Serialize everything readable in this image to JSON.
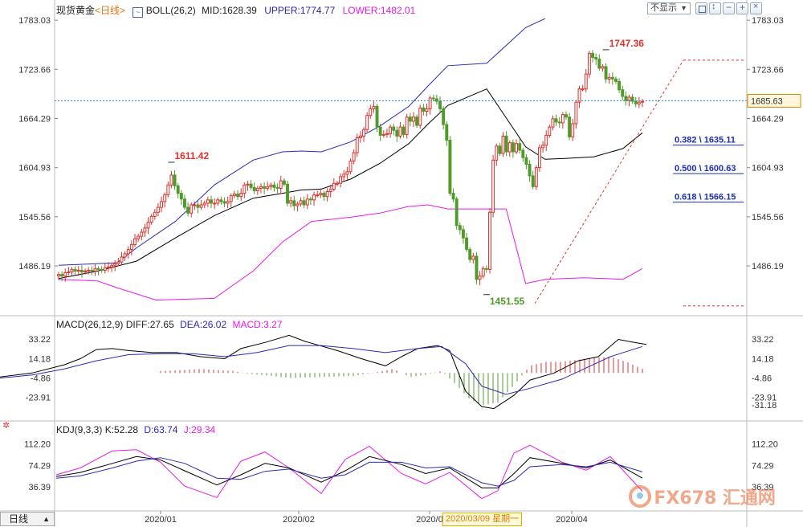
{
  "main_panel": {
    "symbol": "现货黄金",
    "period": "<日线>",
    "indicator": "BOLL(26,2)",
    "mid_label": "MID:1628.39",
    "upper_label": "UPPER:1774.77",
    "lower_label": "LOWER:1482.01",
    "display_select": "不显示",
    "toolbar_icons": [
      "grid-icon",
      "arrows-icon",
      "minus-icon",
      "plus-icon",
      "close-icon"
    ]
  },
  "macd_panel": {
    "title": "MACD(26,12,9)",
    "diff_label": "DIFF:27.65",
    "dea_label": "DEA:26.02",
    "macd_label": "MACD:3.27"
  },
  "kdj_panel": {
    "title": "KDJ(9,3,3)",
    "k_label": "K:52.28",
    "d_label": "D:63.74",
    "j_label": "J:29.34"
  },
  "footer": {
    "period_tab": "日线",
    "crosshair_date": "2020/03/09 星期一",
    "watermark": "FX678 汇通网"
  },
  "colors": {
    "up": "#e0312b",
    "down": "#4f9a2a",
    "mid": "#000000",
    "upper": "#2a2ab5",
    "lower": "#e81ae8",
    "dashed_price": "#2e9bd6",
    "fib": "#e0312b",
    "fib_text": "#1a2fb5"
  },
  "chart_data": [
    {
      "type": "candlestick",
      "x_ticks": [
        "2020/01",
        "2020/02",
        "2020/0",
        "2020/04"
      ],
      "y_ticks": [
        1783.03,
        1723.66,
        1664.29,
        1604.93,
        1545.56,
        1486.19
      ],
      "ylim": [
        1429,
        1788
      ],
      "current_price": "1685.63",
      "annotations": [
        {
          "text": "1611.42",
          "value": 1611.42,
          "candle": 34
        },
        {
          "text": "1747.36",
          "value": 1747.36,
          "candle": 165
        },
        {
          "text": "1451.55",
          "value": 1451.55,
          "candle": 129
        }
      ],
      "fib_levels": [
        {
          "label": "0.382 \\ 1635.11",
          "value": 1635.11
        },
        {
          "label": "0.500 \\ 1600.63",
          "value": 1600.63
        },
        {
          "label": "0.618 \\ 1566.15",
          "value": 1566.15
        }
      ],
      "fib_range": {
        "high": 1747.36,
        "low": 1451.55
      },
      "closes": [
        1476,
        1474,
        1478,
        1479,
        1482,
        1480,
        1481,
        1479,
        1480,
        1481,
        1480,
        1483,
        1482,
        1481,
        1484,
        1485,
        1487,
        1489,
        1491,
        1497,
        1501,
        1506,
        1512,
        1519,
        1522,
        1527,
        1532,
        1539,
        1546,
        1551,
        1557,
        1564,
        1572,
        1584,
        1596,
        1583,
        1574,
        1567,
        1557,
        1550,
        1560,
        1560,
        1557,
        1560,
        1562,
        1566,
        1562,
        1562,
        1566,
        1564,
        1562,
        1564,
        1571,
        1573,
        1570,
        1574,
        1584,
        1585,
        1581,
        1577,
        1580,
        1582,
        1580,
        1582,
        1584,
        1581,
        1580,
        1589,
        1585,
        1562,
        1565,
        1559,
        1561,
        1565,
        1560,
        1567,
        1566,
        1572,
        1572,
        1574,
        1570,
        1576,
        1579,
        1586,
        1586,
        1594,
        1597,
        1600,
        1613,
        1623,
        1641,
        1643,
        1651,
        1668,
        1676,
        1679,
        1654,
        1644,
        1645,
        1646,
        1654,
        1650,
        1643,
        1654,
        1645,
        1666,
        1661,
        1666,
        1656,
        1677,
        1673,
        1676,
        1689,
        1688,
        1685,
        1676,
        1657,
        1638,
        1574,
        1567,
        1535,
        1530,
        1520,
        1506,
        1494,
        1498,
        1470,
        1474,
        1483,
        1482,
        1551,
        1614,
        1631,
        1622,
        1643,
        1624,
        1635,
        1624,
        1634,
        1626,
        1617,
        1609,
        1595,
        1582,
        1605,
        1629,
        1632,
        1644,
        1654,
        1664,
        1660,
        1659,
        1669,
        1666,
        1642,
        1658,
        1684,
        1700,
        1700,
        1718,
        1743,
        1738,
        1736,
        1725,
        1727,
        1712,
        1714,
        1712,
        1709,
        1699,
        1691,
        1686,
        1690,
        1685,
        1682,
        1684,
        1685
      ],
      "boll": {
        "mid": [
          [
            0,
            1471
          ],
          [
            20,
            1480
          ],
          [
            40,
            1492
          ],
          [
            60,
            1520
          ],
          [
            80,
            1547
          ],
          [
            100,
            1568
          ],
          [
            115,
            1574
          ],
          [
            125,
            1578
          ],
          [
            135,
            1579
          ],
          [
            150,
            1591
          ],
          [
            165,
            1610
          ],
          [
            180,
            1634
          ],
          [
            190,
            1658
          ],
          [
            200,
            1680
          ],
          [
            220,
            1700
          ],
          [
            240,
            1630
          ],
          [
            250,
            1615
          ],
          [
            260,
            1616
          ],
          [
            275,
            1618
          ],
          [
            290,
            1628
          ],
          [
            300,
            1647
          ]
        ],
        "upper": [
          [
            0,
            1487
          ],
          [
            30,
            1490
          ],
          [
            40,
            1508
          ],
          [
            60,
            1540
          ],
          [
            80,
            1584
          ],
          [
            100,
            1614
          ],
          [
            115,
            1624
          ],
          [
            125,
            1625
          ],
          [
            135,
            1624
          ],
          [
            150,
            1636
          ],
          [
            165,
            1655
          ],
          [
            180,
            1679
          ],
          [
            190,
            1704
          ],
          [
            200,
            1728
          ],
          [
            220,
            1731
          ],
          [
            240,
            1774
          ],
          [
            250,
            1785
          ]
        ],
        "lower": [
          [
            0,
            1470
          ],
          [
            20,
            1468
          ],
          [
            30,
            1460
          ],
          [
            50,
            1445
          ],
          [
            80,
            1447
          ],
          [
            100,
            1480
          ],
          [
            115,
            1515
          ],
          [
            130,
            1540
          ],
          [
            150,
            1545
          ],
          [
            165,
            1550
          ],
          [
            180,
            1558
          ],
          [
            190,
            1560
          ],
          [
            200,
            1555
          ],
          [
            230,
            1555
          ],
          [
            240,
            1465
          ],
          [
            250,
            1470
          ],
          [
            270,
            1472
          ],
          [
            290,
            1470
          ],
          [
            300,
            1483
          ]
        ]
      }
    },
    {
      "type": "macd",
      "y_ticks": [
        33.22,
        14.18,
        -4.86,
        -23.91
      ],
      "ylim": [
        -44,
        46
      ],
      "current_value": "-31.18",
      "diff": [
        [
          0,
          -4
        ],
        [
          40,
          0
        ],
        [
          80,
          8
        ],
        [
          100,
          14
        ],
        [
          120,
          23
        ],
        [
          140,
          24
        ],
        [
          160,
          22
        ],
        [
          190,
          20
        ],
        [
          220,
          20
        ],
        [
          250,
          16
        ],
        [
          280,
          14
        ],
        [
          300,
          24
        ],
        [
          330,
          30
        ],
        [
          360,
          37
        ],
        [
          380,
          31
        ],
        [
          420,
          22
        ],
        [
          450,
          14
        ],
        [
          480,
          7
        ],
        [
          500,
          16
        ],
        [
          520,
          24
        ],
        [
          545,
          27
        ],
        [
          560,
          22
        ],
        [
          580,
          -18
        ],
        [
          600,
          -33
        ],
        [
          615,
          -35
        ],
        [
          640,
          -22
        ],
        [
          660,
          -7
        ],
        [
          690,
          0
        ],
        [
          720,
          12
        ],
        [
          745,
          16
        ],
        [
          770,
          33
        ],
        [
          790,
          30
        ],
        [
          805,
          28
        ]
      ],
      "dea": [
        [
          0,
          -5
        ],
        [
          40,
          -2
        ],
        [
          80,
          4
        ],
        [
          120,
          12
        ],
        [
          160,
          18
        ],
        [
          200,
          19
        ],
        [
          240,
          19
        ],
        [
          280,
          16
        ],
        [
          320,
          20
        ],
        [
          360,
          27
        ],
        [
          400,
          27
        ],
        [
          440,
          24
        ],
        [
          480,
          20
        ],
        [
          520,
          24
        ],
        [
          550,
          26
        ],
        [
          580,
          9
        ],
        [
          600,
          -13
        ],
        [
          630,
          -21
        ],
        [
          660,
          -15
        ],
        [
          700,
          -6
        ],
        [
          730,
          5
        ],
        [
          760,
          16
        ],
        [
          800,
          26
        ]
      ],
      "hist": [
        [
          200,
          2
        ],
        [
          230,
          3
        ],
        [
          250,
          4
        ],
        [
          290,
          2
        ],
        [
          310,
          -1
        ],
        [
          340,
          -3
        ],
        [
          360,
          -5
        ],
        [
          400,
          -4
        ],
        [
          440,
          -3
        ],
        [
          470,
          1
        ],
        [
          490,
          4
        ],
        [
          510,
          -4
        ],
        [
          530,
          -2
        ],
        [
          550,
          2
        ],
        [
          570,
          -13
        ],
        [
          585,
          -26
        ],
        [
          600,
          -32
        ],
        [
          620,
          -29
        ],
        [
          640,
          -12
        ],
        [
          660,
          7
        ],
        [
          680,
          11
        ],
        [
          700,
          11
        ],
        [
          720,
          13
        ],
        [
          740,
          15
        ],
        [
          760,
          16
        ],
        [
          780,
          11
        ],
        [
          800,
          4
        ]
      ]
    },
    {
      "type": "kdj",
      "y_ticks": [
        112.2,
        74.29,
        36.39
      ],
      "ylim": [
        0,
        130
      ],
      "k": [
        [
          70,
          55
        ],
        [
          100,
          62
        ],
        [
          140,
          78
        ],
        [
          170,
          90
        ],
        [
          200,
          84
        ],
        [
          230,
          65
        ],
        [
          270,
          40
        ],
        [
          300,
          58
        ],
        [
          330,
          78
        ],
        [
          360,
          70
        ],
        [
          400,
          45
        ],
        [
          430,
          65
        ],
        [
          460,
          90
        ],
        [
          500,
          76
        ],
        [
          530,
          60
        ],
        [
          560,
          70
        ],
        [
          600,
          35
        ],
        [
          620,
          35
        ],
        [
          640,
          60
        ],
        [
          660,
          88
        ],
        [
          700,
          78
        ],
        [
          730,
          70
        ],
        [
          760,
          84
        ],
        [
          800,
          52
        ]
      ],
      "d": [
        [
          70,
          52
        ],
        [
          100,
          56
        ],
        [
          140,
          70
        ],
        [
          170,
          82
        ],
        [
          200,
          88
        ],
        [
          230,
          78
        ],
        [
          270,
          52
        ],
        [
          300,
          50
        ],
        [
          330,
          64
        ],
        [
          360,
          68
        ],
        [
          400,
          52
        ],
        [
          430,
          58
        ],
        [
          460,
          80
        ],
        [
          500,
          80
        ],
        [
          530,
          70
        ],
        [
          560,
          72
        ],
        [
          600,
          44
        ],
        [
          620,
          38
        ],
        [
          640,
          48
        ],
        [
          660,
          72
        ],
        [
          700,
          76
        ],
        [
          730,
          72
        ],
        [
          760,
          80
        ],
        [
          800,
          63
        ]
      ],
      "j": [
        [
          70,
          58
        ],
        [
          100,
          70
        ],
        [
          140,
          100
        ],
        [
          170,
          102
        ],
        [
          200,
          80
        ],
        [
          230,
          38
        ],
        [
          270,
          18
        ],
        [
          300,
          82
        ],
        [
          330,
          98
        ],
        [
          360,
          70
        ],
        [
          400,
          25
        ],
        [
          430,
          85
        ],
        [
          460,
          108
        ],
        [
          500,
          60
        ],
        [
          530,
          42
        ],
        [
          560,
          62
        ],
        [
          600,
          16
        ],
        [
          620,
          30
        ],
        [
          640,
          96
        ],
        [
          660,
          110
        ],
        [
          700,
          80
        ],
        [
          730,
          66
        ],
        [
          760,
          90
        ],
        [
          800,
          29
        ]
      ]
    }
  ]
}
